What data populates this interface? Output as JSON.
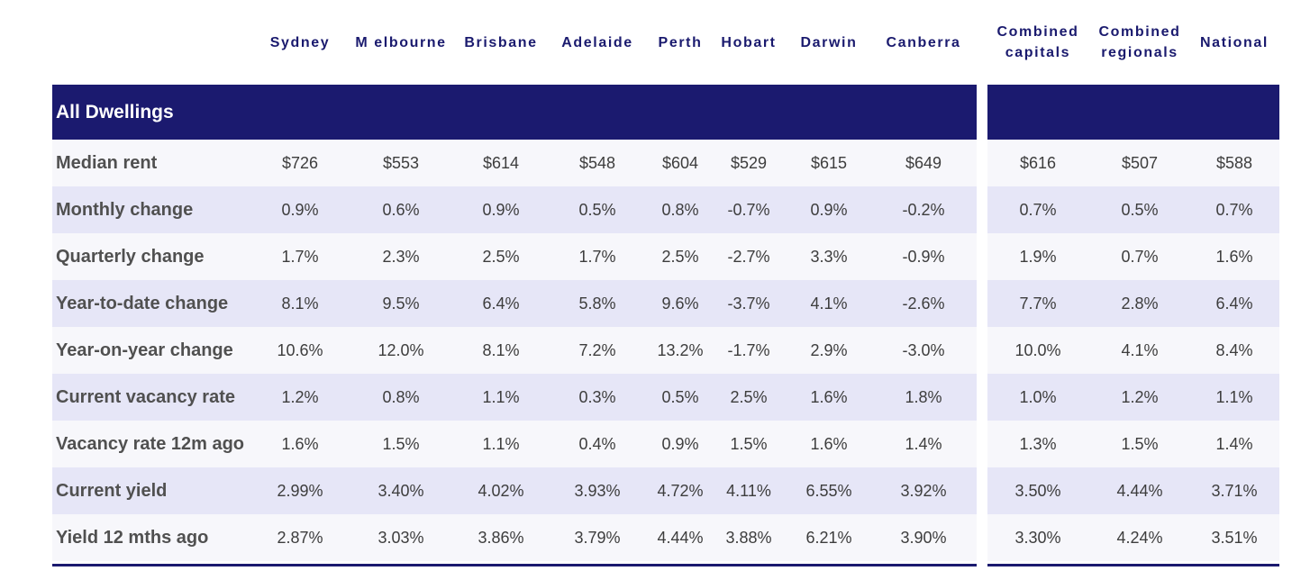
{
  "chart_data": {
    "type": "table",
    "columns": [
      "Sydney",
      "M elbourne",
      "Brisbane",
      "Adelaide",
      "Perth",
      "Hobart",
      "Darwin",
      "Canberra",
      "Combined capitals",
      "Combined regionals",
      "National"
    ],
    "section_title": "All Dwellings",
    "rows": [
      {
        "label": "Median rent",
        "values": [
          "$726",
          "$553",
          "$614",
          "$548",
          "$604",
          "$529",
          "$615",
          "$649",
          "$616",
          "$507",
          "$588"
        ]
      },
      {
        "label": "Monthly change",
        "values": [
          "0.9%",
          "0.6%",
          "0.9%",
          "0.5%",
          "0.8%",
          "-0.7%",
          "0.9%",
          "-0.2%",
          "0.7%",
          "0.5%",
          "0.7%"
        ]
      },
      {
        "label": "Quarterly change",
        "values": [
          "1.7%",
          "2.3%",
          "2.5%",
          "1.7%",
          "2.5%",
          "-2.7%",
          "3.3%",
          "-0.9%",
          "1.9%",
          "0.7%",
          "1.6%"
        ]
      },
      {
        "label": "Year-to-date change",
        "values": [
          "8.1%",
          "9.5%",
          "6.4%",
          "5.8%",
          "9.6%",
          "-3.7%",
          "4.1%",
          "-2.6%",
          "7.7%",
          "2.8%",
          "6.4%"
        ]
      },
      {
        "label": "Year-on-year change",
        "values": [
          "10.6%",
          "12.0%",
          "8.1%",
          "7.2%",
          "13.2%",
          "-1.7%",
          "2.9%",
          "-3.0%",
          "10.0%",
          "4.1%",
          "8.4%"
        ]
      },
      {
        "label": "Current vacancy rate",
        "values": [
          "1.2%",
          "0.8%",
          "1.1%",
          "0.3%",
          "0.5%",
          "2.5%",
          "1.6%",
          "1.8%",
          "1.0%",
          "1.2%",
          "1.1%"
        ]
      },
      {
        "label": "Vacancy rate 12m ago",
        "values": [
          "1.6%",
          "1.5%",
          "1.1%",
          "0.4%",
          "0.9%",
          "1.5%",
          "1.6%",
          "1.4%",
          "1.3%",
          "1.5%",
          "1.4%"
        ]
      },
      {
        "label": "Current yield",
        "values": [
          "2.99%",
          "3.40%",
          "4.02%",
          "3.93%",
          "4.72%",
          "4.11%",
          "6.55%",
          "3.92%",
          "3.50%",
          "4.44%",
          "3.71%"
        ]
      },
      {
        "label": "Yield 12 mths ago",
        "values": [
          "2.87%",
          "3.03%",
          "3.86%",
          "3.79%",
          "4.44%",
          "3.88%",
          "6.21%",
          "3.90%",
          "3.30%",
          "4.24%",
          "3.51%"
        ]
      }
    ]
  },
  "colors": {
    "header_band": "#1b1a6f",
    "column_header_text": "#1a1a6e",
    "row_shaded": "#e6e6f7",
    "row_plain": "#f7f7fb",
    "cell_text": "#3d3d3d",
    "label_text": "#505050"
  }
}
